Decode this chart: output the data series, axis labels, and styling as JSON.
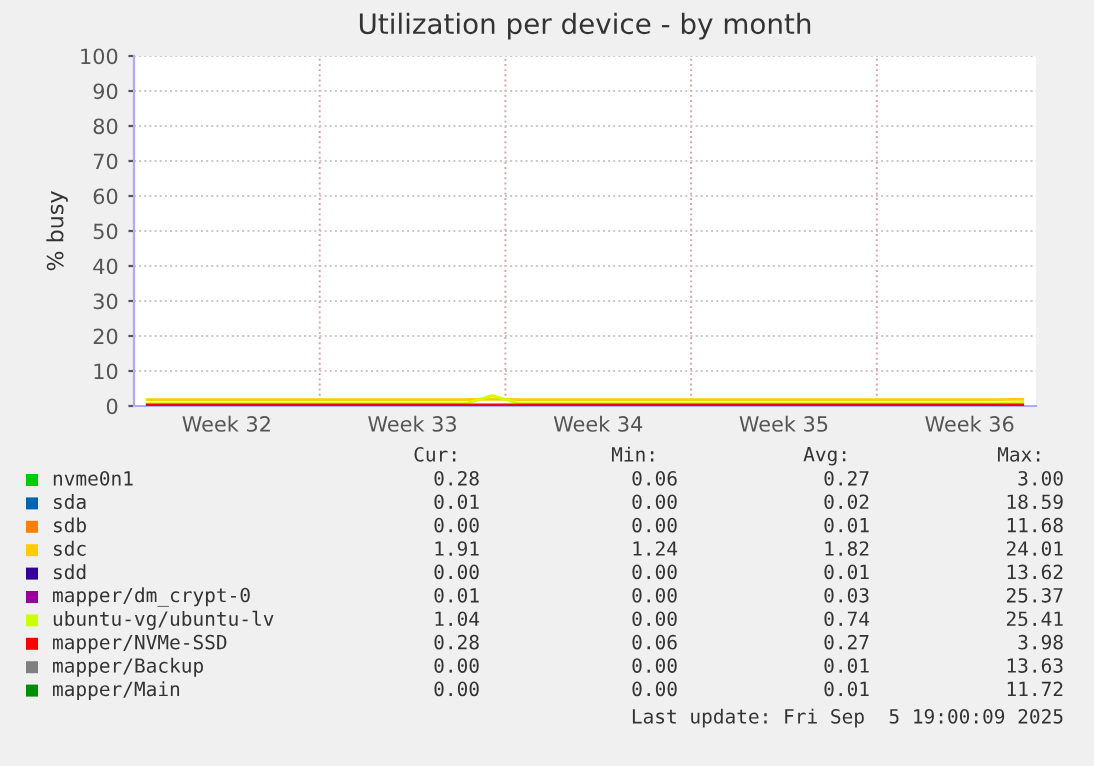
{
  "chart_data": {
    "type": "line",
    "title": "Utilization per device - by month",
    "ylabel": "% busy",
    "ylim": [
      0,
      100
    ],
    "yticks": [
      0,
      10,
      20,
      30,
      40,
      50,
      60,
      70,
      80,
      90,
      100
    ],
    "grid": true,
    "legend": "bottom",
    "line_style": "solid",
    "marker": "none",
    "categories": [
      null,
      null,
      null,
      "Week 32",
      null,
      null,
      null,
      null,
      null,
      null,
      "Week 33",
      null,
      null,
      null,
      null,
      null,
      null,
      "Week 34",
      null,
      null,
      null,
      null,
      null,
      null,
      "Week 35",
      null,
      null,
      null,
      null,
      null,
      null,
      "Week 36",
      null,
      null
    ],
    "series": [
      {
        "name": "nvme0n1",
        "color": "#00cc00",
        "values": [
          null,
          null,
          null,
          null,
          null,
          null,
          null,
          null,
          null,
          null,
          null,
          null,
          null,
          null,
          null,
          null,
          null,
          null,
          null,
          null,
          null,
          null,
          null,
          null,
          null,
          null,
          null,
          null,
          null,
          null,
          null,
          null,
          null,
          null
        ]
      },
      {
        "name": "sda",
        "color": "#0066b3",
        "values": [
          null,
          null,
          null,
          null,
          null,
          null,
          null,
          null,
          null,
          null,
          null,
          null,
          null,
          null,
          null,
          null,
          null,
          null,
          null,
          null,
          null,
          null,
          null,
          null,
          null,
          null,
          null,
          null,
          null,
          null,
          null,
          null,
          null,
          null
        ]
      },
      {
        "name": "sdb",
        "color": "#ff8000",
        "values": [
          null,
          null,
          null,
          null,
          null,
          null,
          null,
          null,
          null,
          null,
          null,
          null,
          null,
          null,
          null,
          null,
          null,
          null,
          null,
          null,
          null,
          null,
          null,
          null,
          null,
          null,
          null,
          null,
          null,
          null,
          null,
          null,
          null,
          null
        ]
      },
      {
        "name": "sdc",
        "color": "#ffcc00",
        "values": [
          1.8,
          1.8,
          1.8,
          1.8,
          1.8,
          1.8,
          1.8,
          1.8,
          1.8,
          1.8,
          1.8,
          1.8,
          1.8,
          2.0,
          1.8,
          1.8,
          1.8,
          1.8,
          1.8,
          1.8,
          1.8,
          1.8,
          1.8,
          1.8,
          1.8,
          1.8,
          1.8,
          1.8,
          1.8,
          1.8,
          1.8,
          1.8,
          1.8,
          1.9
        ]
      },
      {
        "name": "sdd",
        "color": "#330099",
        "values": [
          null,
          null,
          null,
          null,
          null,
          null,
          null,
          null,
          null,
          null,
          null,
          null,
          null,
          null,
          null,
          null,
          null,
          null,
          null,
          null,
          null,
          null,
          null,
          null,
          null,
          null,
          null,
          null,
          null,
          null,
          null,
          null,
          null,
          null
        ]
      },
      {
        "name": "mapper/dm_crypt-0",
        "color": "#990099",
        "values": [
          null,
          null,
          null,
          null,
          null,
          null,
          null,
          null,
          null,
          null,
          null,
          null,
          null,
          null,
          null,
          null,
          null,
          null,
          null,
          null,
          null,
          null,
          null,
          null,
          null,
          null,
          null,
          null,
          null,
          null,
          null,
          null,
          null,
          null
        ]
      },
      {
        "name": "ubuntu-vg/ubuntu-lv",
        "color": "#ccff00",
        "values": [
          0.7,
          0.7,
          0.7,
          0.7,
          0.7,
          0.7,
          0.7,
          0.7,
          0.7,
          0.7,
          0.7,
          0.7,
          0.7,
          3.0,
          0.7,
          0.7,
          0.7,
          0.7,
          0.7,
          0.7,
          0.7,
          0.7,
          0.7,
          0.7,
          0.7,
          0.7,
          0.7,
          0.7,
          0.7,
          0.7,
          0.7,
          0.7,
          0.7,
          1.0
        ]
      },
      {
        "name": "mapper/NVMe-SSD",
        "color": "#ff0000",
        "values": [
          0.3,
          0.3,
          0.3,
          0.3,
          0.3,
          0.3,
          0.3,
          0.3,
          0.3,
          0.3,
          0.3,
          0.3,
          0.3,
          0.3,
          0.3,
          0.3,
          0.3,
          0.3,
          0.3,
          0.3,
          0.3,
          0.3,
          0.3,
          0.3,
          0.3,
          0.3,
          0.3,
          0.3,
          0.3,
          0.3,
          0.3,
          0.3,
          0.3,
          0.3
        ]
      },
      {
        "name": "mapper/Backup",
        "color": "#808080",
        "values": [
          null,
          null,
          null,
          null,
          null,
          null,
          null,
          null,
          null,
          null,
          null,
          null,
          null,
          null,
          null,
          null,
          null,
          null,
          null,
          null,
          null,
          null,
          null,
          null,
          null,
          null,
          null,
          null,
          null,
          null,
          null,
          null,
          null,
          null
        ]
      },
      {
        "name": "mapper/Main",
        "color": "#008f00",
        "values": [
          null,
          null,
          null,
          null,
          null,
          null,
          null,
          null,
          null,
          null,
          null,
          null,
          null,
          null,
          null,
          null,
          null,
          null,
          null,
          null,
          null,
          null,
          null,
          null,
          null,
          null,
          null,
          null,
          null,
          null,
          null,
          null,
          null,
          null
        ]
      }
    ],
    "annotations": [
      "Cur:",
      "Min:",
      "Avg:",
      "Max:",
      "0.28",
      "0.06",
      "0.27",
      "3.00",
      "0.01",
      "0.00",
      "0.02",
      "18.59",
      "0.00",
      "0.00",
      "0.01",
      "11.68",
      "1.91",
      "1.24",
      "1.82",
      "24.01",
      "0.00",
      "0.00",
      "0.01",
      "13.62",
      "0.01",
      "0.00",
      "0.03",
      "25.37",
      "1.04",
      "0.00",
      "0.74",
      "25.41",
      "0.28",
      "0.06",
      "0.27",
      "3.98",
      "0.00",
      "0.00",
      "0.01",
      "13.63",
      "0.00",
      "0.00",
      "0.01",
      "11.72",
      "Last update: Fri Sep  5 19:00:09 2025"
    ]
  }
}
